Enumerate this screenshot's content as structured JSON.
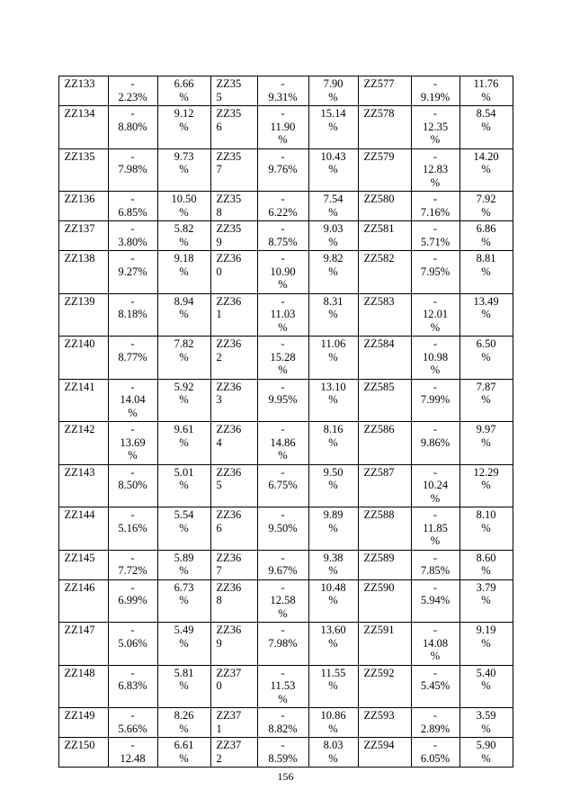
{
  "footer": {
    "page_number": "156"
  },
  "table": {
    "rows": [
      {
        "cells": [
          "ZZ133",
          "-\n2.23%",
          "6.66\n%",
          "ZZ35\n5",
          "-\n9.31%",
          "7.90\n%",
          "ZZ577",
          "-\n9.19%",
          "11.76\n%"
        ]
      },
      {
        "cells": [
          "ZZ134",
          "-\n8.80%",
          "9.12\n%",
          "ZZ35\n6",
          "-\n11.90\n%",
          "15.14\n%",
          "ZZ578",
          "-\n12.35\n%",
          "8.54\n%"
        ]
      },
      {
        "cells": [
          "ZZ135",
          "-\n7.98%",
          "9.73\n%",
          "ZZ35\n7",
          "-\n9.76%",
          "10.43\n%",
          "ZZ579",
          "-\n12.83\n%",
          "14.20\n%"
        ]
      },
      {
        "cells": [
          "ZZ136",
          "-\n6.85%",
          "10.50\n%",
          "ZZ35\n8",
          "-\n6.22%",
          "7.54\n%",
          "ZZ580",
          "-\n7.16%",
          "7.92\n%"
        ]
      },
      {
        "cells": [
          "ZZ137",
          "-\n3.80%",
          "5.82\n%",
          "ZZ35\n9",
          "-\n8.75%",
          "9.03\n%",
          "ZZ581",
          "-\n5.71%",
          "6.86\n%"
        ]
      },
      {
        "cells": [
          "ZZ138",
          "-\n9.27%",
          "9.18\n%",
          "ZZ36\n0",
          "-\n10.90\n%",
          "9.82\n%",
          "ZZ582",
          "-\n7.95%",
          "8.81\n%"
        ]
      },
      {
        "cells": [
          "ZZ139",
          "-\n8.18%",
          "8.94\n%",
          "ZZ36\n1",
          "-\n11.03\n%",
          "8.31\n%",
          "ZZ583",
          "-\n12.01\n%",
          "13.49\n%"
        ]
      },
      {
        "cells": [
          "ZZ140",
          "-\n8.77%",
          "7.82\n%",
          "ZZ36\n2",
          "-\n15.28\n%",
          "11.06\n%",
          "ZZ584",
          "-\n10.98\n%",
          "6.50\n%"
        ]
      },
      {
        "cells": [
          "ZZ141",
          "-\n14.04\n%",
          "5.92\n%",
          "ZZ36\n3",
          "-\n9.95%",
          "13.10\n%",
          "ZZ585",
          "-\n7.99%",
          "7.87\n%"
        ]
      },
      {
        "cells": [
          "ZZ142",
          "-\n13.69\n%",
          "9.61\n%",
          "ZZ36\n4",
          "-\n14.86\n%",
          "8.16\n%",
          "ZZ586",
          "-\n9.86%",
          "9.97\n%"
        ]
      },
      {
        "cells": [
          "ZZ143",
          "-\n8.50%",
          "5.01\n%",
          "ZZ36\n5",
          "-\n6.75%",
          "9.50\n%",
          "ZZ587",
          "-\n10.24\n%",
          "12.29\n%"
        ]
      },
      {
        "cells": [
          "ZZ144",
          "-\n5.16%",
          "5.54\n%",
          "ZZ36\n6",
          "-\n9.50%",
          "9.89\n%",
          "ZZ588",
          "-\n11.85\n%",
          "8.10\n%"
        ]
      },
      {
        "cells": [
          "ZZ145",
          "-\n7.72%",
          "5.89\n%",
          "ZZ36\n7",
          "-\n9.67%",
          "9.38\n%",
          "ZZ589",
          "-\n7.85%",
          "8.60\n%"
        ]
      },
      {
        "cells": [
          "ZZ146",
          "-\n6.99%",
          "6.73\n%",
          "ZZ36\n8",
          "-\n12.58\n%",
          "10.48\n%",
          "ZZ590",
          "-\n5.94%",
          "3.79\n%"
        ]
      },
      {
        "cells": [
          "ZZ147",
          "-\n5.06%",
          "5.49\n%",
          "ZZ36\n9",
          "-\n7.98%",
          "13.60\n%",
          "ZZ591",
          "-\n14.08\n%",
          "9.19\n%"
        ]
      },
      {
        "cells": [
          "ZZ148",
          "-\n6.83%",
          "5.81\n%",
          "ZZ37\n0",
          "-\n11.53\n%",
          "11.55\n%",
          "ZZ592",
          "-\n5.45%",
          "5.40\n%"
        ]
      },
      {
        "cells": [
          "ZZ149",
          "-\n5.66%",
          "8.26\n%",
          "ZZ37\n1",
          "-\n8.82%",
          "10.86\n%",
          "ZZ593",
          "-\n2.89%",
          "3.59\n%"
        ]
      },
      {
        "cells": [
          "ZZ150",
          "-\n12.48",
          "6.61\n%",
          "ZZ37\n2",
          "-\n8.59%",
          "8.03\n%",
          "ZZ594",
          "-\n6.05%",
          "5.90\n%"
        ]
      }
    ]
  }
}
